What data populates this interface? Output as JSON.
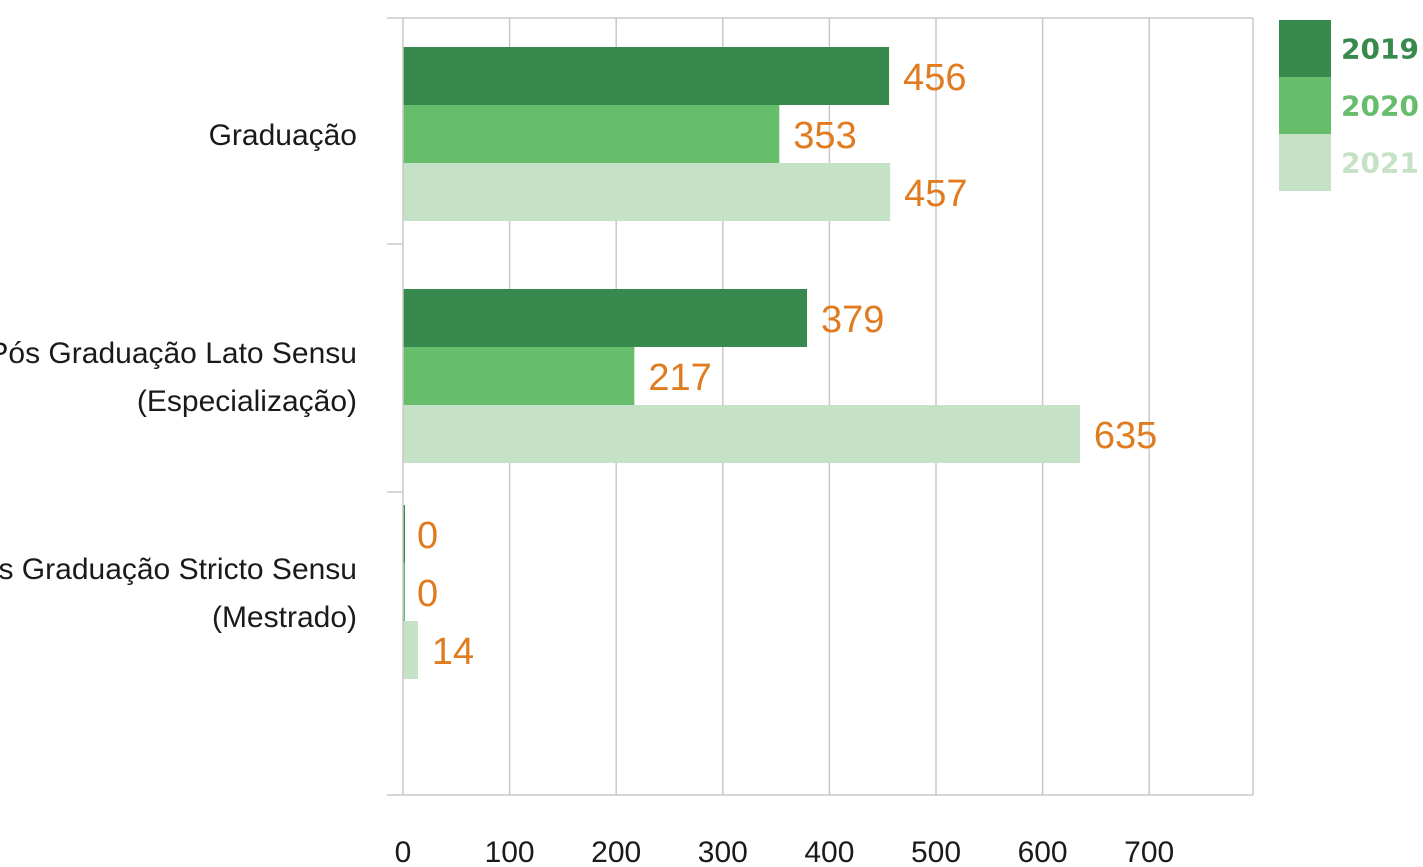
{
  "chart_data": {
    "type": "bar",
    "orientation": "horizontal",
    "categories": [
      [
        "Graduação"
      ],
      [
        "Pós Graduação Lato Sensu",
        "(Especialização)"
      ],
      [
        "Pós Graduação Stricto Sensu",
        "(Mestrado)"
      ]
    ],
    "series": [
      {
        "name": "2019",
        "color": "#37894e",
        "values": [
          456,
          379,
          0
        ]
      },
      {
        "name": "2020",
        "color": "#66bd6c",
        "values": [
          353,
          217,
          0
        ]
      },
      {
        "name": "2021",
        "color": "#c5e2c6",
        "values": [
          457,
          635,
          14
        ]
      }
    ],
    "xticks": [
      "0",
      "100",
      "200",
      "300",
      "400",
      "500",
      "600",
      "700"
    ],
    "xlim": [
      0,
      800
    ],
    "grid": true,
    "legend_position": "top-right",
    "value_label_color": "#e07b1f"
  }
}
